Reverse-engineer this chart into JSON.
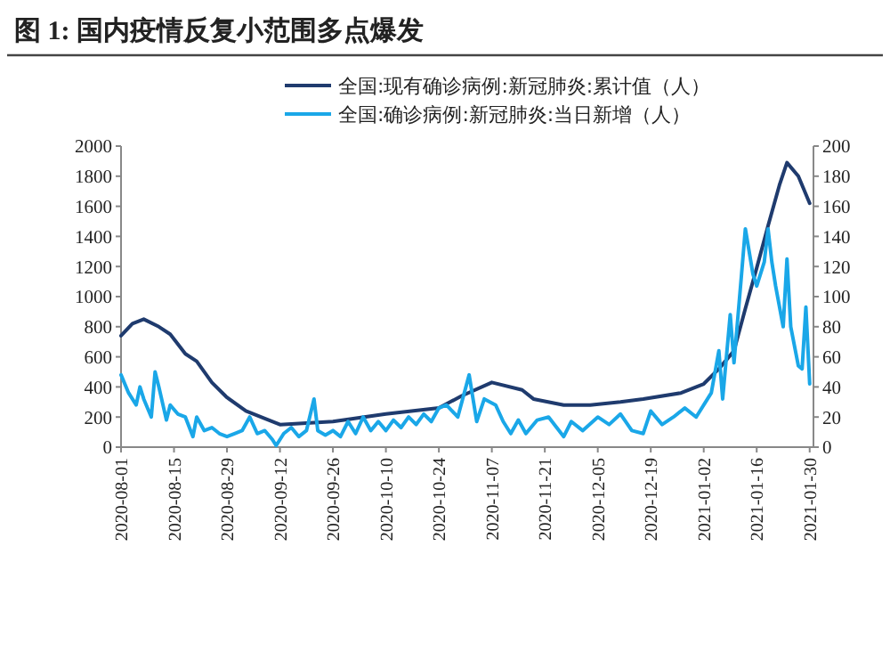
{
  "chart_data": {
    "type": "line",
    "title": "图 1: 国内疫情反复小范围多点爆发",
    "legend": "top",
    "grid": false,
    "xlim": [
      "2020-08-01",
      "2021-01-31"
    ],
    "xticks": [
      "2020-08-01",
      "2020-08-15",
      "2020-08-29",
      "2020-09-12",
      "2020-09-26",
      "2020-10-10",
      "2020-10-24",
      "2020-11-07",
      "2020-11-21",
      "2020-12-05",
      "2020-12-19",
      "2021-01-02",
      "2021-01-16",
      "2021-01-30"
    ],
    "ylim": [
      0,
      2000
    ],
    "yticks": [
      0,
      200,
      400,
      600,
      800,
      1000,
      1200,
      1400,
      1600,
      1800,
      2000
    ],
    "y2lim": [
      0,
      200
    ],
    "y2ticks": [
      0,
      20,
      40,
      60,
      80,
      100,
      120,
      140,
      160,
      180,
      200
    ],
    "series": [
      {
        "name": "全国:现有确诊病例:新冠肺炎:累计值（人）",
        "color": "#1f3b6e",
        "axis": "y",
        "x": [
          "2020-08-01",
          "2020-08-04",
          "2020-08-07",
          "2020-08-11",
          "2020-08-14",
          "2020-08-18",
          "2020-08-21",
          "2020-08-25",
          "2020-08-29",
          "2020-09-03",
          "2020-09-08",
          "2020-09-12",
          "2020-09-26",
          "2020-10-10",
          "2020-10-24",
          "2020-10-30",
          "2020-11-07",
          "2020-11-15",
          "2020-11-18",
          "2020-11-26",
          "2020-12-03",
          "2020-12-11",
          "2020-12-17",
          "2020-12-27",
          "2021-01-02",
          "2021-01-06",
          "2021-01-10",
          "2021-01-13",
          "2021-01-16",
          "2021-01-19",
          "2021-01-22",
          "2021-01-24",
          "2021-01-27",
          "2021-01-30"
        ],
        "values": [
          740,
          820,
          850,
          800,
          750,
          620,
          570,
          430,
          330,
          240,
          190,
          150,
          170,
          220,
          260,
          340,
          430,
          380,
          320,
          280,
          280,
          300,
          320,
          360,
          420,
          520,
          640,
          920,
          1190,
          1470,
          1740,
          1890,
          1800,
          1620
        ]
      },
      {
        "name": "全国:确诊病例:新冠肺炎:当日新增（人）",
        "color": "#1aa7e8",
        "axis": "y2",
        "x": [
          "2020-08-01",
          "2020-08-03",
          "2020-08-05",
          "2020-08-06",
          "2020-08-07",
          "2020-08-09",
          "2020-08-10",
          "2020-08-11",
          "2020-08-13",
          "2020-08-14",
          "2020-08-16",
          "2020-08-18",
          "2020-08-20",
          "2020-08-21",
          "2020-08-23",
          "2020-08-25",
          "2020-08-27",
          "2020-08-29",
          "2020-08-31",
          "2020-09-02",
          "2020-09-04",
          "2020-09-06",
          "2020-09-08",
          "2020-09-10",
          "2020-09-11",
          "2020-09-13",
          "2020-09-15",
          "2020-09-17",
          "2020-09-19",
          "2020-09-21",
          "2020-09-22",
          "2020-09-24",
          "2020-09-26",
          "2020-09-28",
          "2020-09-30",
          "2020-10-02",
          "2020-10-04",
          "2020-10-06",
          "2020-10-08",
          "2020-10-10",
          "2020-10-12",
          "2020-10-14",
          "2020-10-16",
          "2020-10-18",
          "2020-10-20",
          "2020-10-22",
          "2020-10-24",
          "2020-10-26",
          "2020-10-29",
          "2020-11-01",
          "2020-11-03",
          "2020-11-05",
          "2020-11-08",
          "2020-11-10",
          "2020-11-12",
          "2020-11-14",
          "2020-11-16",
          "2020-11-19",
          "2020-11-22",
          "2020-11-26",
          "2020-11-28",
          "2020-12-01",
          "2020-12-05",
          "2020-12-08",
          "2020-12-11",
          "2020-12-14",
          "2020-12-17",
          "2020-12-19",
          "2020-12-22",
          "2020-12-25",
          "2020-12-28",
          "2020-12-31",
          "2021-01-03",
          "2021-01-04",
          "2021-01-06",
          "2021-01-07",
          "2021-01-09",
          "2021-01-10",
          "2021-01-12",
          "2021-01-13",
          "2021-01-15",
          "2021-01-16",
          "2021-01-18",
          "2021-01-19",
          "2021-01-20",
          "2021-01-21",
          "2021-01-23",
          "2021-01-24",
          "2021-01-25",
          "2021-01-27",
          "2021-01-28",
          "2021-01-29",
          "2021-01-30"
        ],
        "values": [
          48,
          36,
          28,
          40,
          32,
          20,
          50,
          40,
          18,
          28,
          22,
          20,
          7,
          20,
          11,
          13,
          9,
          7,
          9,
          11,
          20,
          9,
          11,
          5,
          1,
          9,
          13,
          7,
          11,
          32,
          11,
          8,
          11,
          7,
          17,
          9,
          20,
          11,
          17,
          11,
          18,
          13,
          20,
          15,
          22,
          17,
          26,
          28,
          20,
          48,
          17,
          32,
          28,
          17,
          9,
          18,
          9,
          18,
          20,
          7,
          17,
          11,
          20,
          15,
          22,
          11,
          9,
          24,
          15,
          20,
          26,
          20,
          32,
          36,
          64,
          32,
          88,
          56,
          115,
          145,
          115,
          107,
          123,
          145,
          123,
          107,
          80,
          125,
          80,
          54,
          52,
          93,
          42
        ]
      }
    ]
  }
}
